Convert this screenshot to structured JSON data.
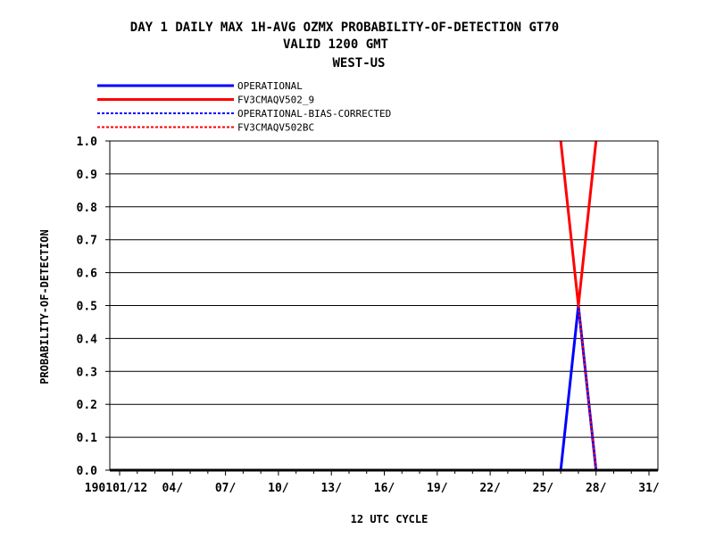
{
  "chart_data": {
    "type": "line",
    "title": [
      "DAY 1 DAILY MAX   1H-AVG OZMX PROBABILITY-OF-DETECTION GT70",
      "VALID 1200 GMT",
      "WEST-US"
    ],
    "xlabel": "12 UTC CYCLE",
    "ylabel": "PROBABILITY-OF-DETECTION",
    "xlim": [
      1,
      31
    ],
    "ylim": [
      0,
      1.0
    ],
    "x_ticks": [
      1,
      4,
      7,
      10,
      13,
      16,
      19,
      22,
      25,
      28,
      31
    ],
    "x_tick_labels": [
      "190101/12",
      "04/",
      "07/",
      "10/",
      "13/",
      "16/",
      "19/",
      "22/",
      "25/",
      "28/",
      "31/"
    ],
    "y_ticks": [
      0.0,
      0.1,
      0.2,
      0.3,
      0.4,
      0.5,
      0.6,
      0.7,
      0.8,
      0.9,
      1.0
    ],
    "y_tick_labels": [
      "0.0",
      "0.1",
      "0.2",
      "0.3",
      "0.4",
      "0.5",
      "0.6",
      "0.7",
      "0.8",
      "0.9",
      "1.0"
    ],
    "grid": "horizontal",
    "legend_position": "top-left",
    "series": [
      {
        "name": "OPERATIONAL",
        "color": "#0000ff",
        "dash": false,
        "x": [
          26,
          27,
          28
        ],
        "y": [
          0.0,
          0.5,
          0.0
        ]
      },
      {
        "name": "FV3CMAQV502_9",
        "color": "#ff0000",
        "dash": false,
        "x": [
          26,
          27,
          28
        ],
        "y": [
          1.0,
          0.5,
          1.0
        ]
      },
      {
        "name": "OPERATIONAL-BIAS-CORRECTED",
        "color": "#0000ff",
        "dash": true,
        "x": [],
        "y": []
      },
      {
        "name": "FV3CMAQV502BC",
        "color": "#ff0000",
        "dash": true,
        "x": [
          27,
          28
        ],
        "y": [
          0.5,
          0.0
        ]
      }
    ]
  }
}
